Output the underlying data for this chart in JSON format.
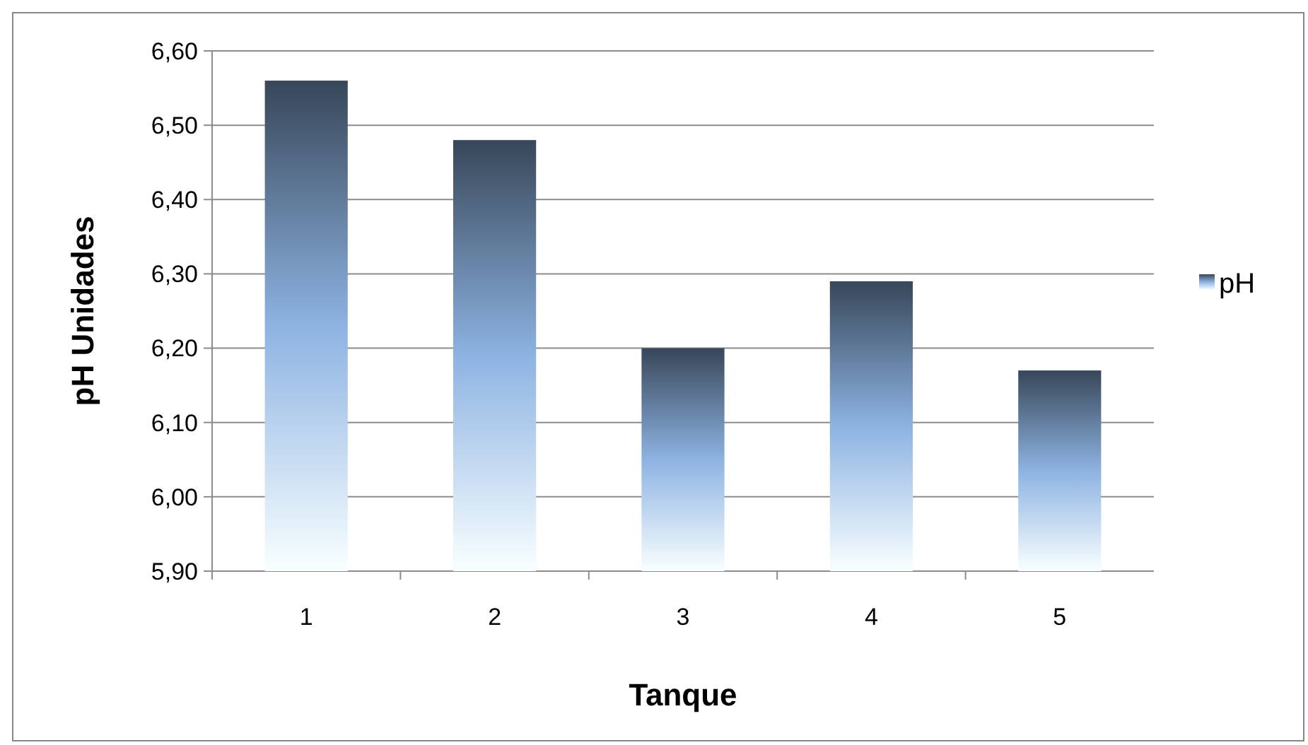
{
  "chart_data": {
    "type": "bar",
    "xlabel": "Tanque",
    "ylabel": "pH Unidades",
    "categories": [
      "1",
      "2",
      "3",
      "4",
      "5"
    ],
    "series": [
      {
        "name": "pH",
        "color": "#8db3e2",
        "values": [
          6.56,
          6.48,
          6.2,
          6.29,
          6.17
        ]
      }
    ],
    "ylim": [
      5.9,
      6.6
    ],
    "yticks": [
      {
        "value": 5.9,
        "label": "5,90"
      },
      {
        "value": 6.0,
        "label": "6,00"
      },
      {
        "value": 6.1,
        "label": "6,10"
      },
      {
        "value": 6.2,
        "label": "6,20"
      },
      {
        "value": 6.3,
        "label": "6,30"
      },
      {
        "value": 6.4,
        "label": "6,40"
      },
      {
        "value": 6.5,
        "label": "6,50"
      },
      {
        "value": 6.6,
        "label": "6,60"
      }
    ],
    "grid": "y",
    "legend": "right"
  }
}
